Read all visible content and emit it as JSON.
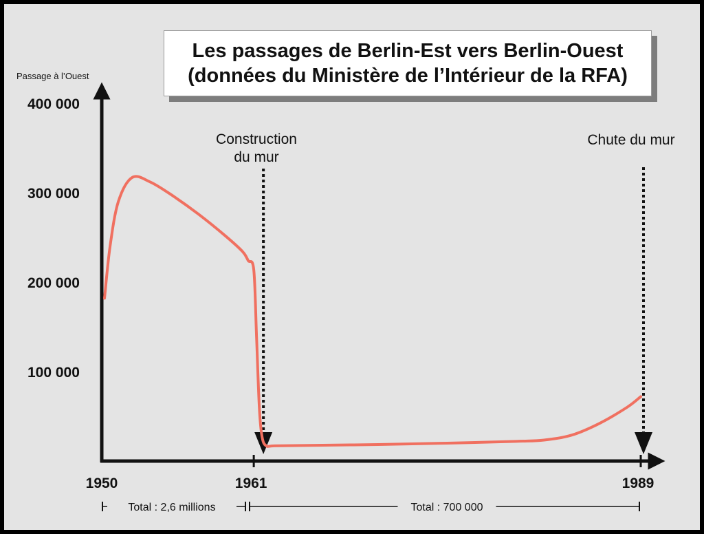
{
  "chart_data": {
    "type": "line",
    "title": [
      "Les passages de Berlin-Est vers Berlin-Ouest",
      "(données du Ministère de l’Intérieur de la RFA)"
    ],
    "ylabel": "Passage à l’Ouest",
    "ylim": [
      0,
      400000
    ],
    "yticks": [
      {
        "value": 100000,
        "label": "100 000"
      },
      {
        "value": 200000,
        "label": "200 000"
      },
      {
        "value": 300000,
        "label": "300 000"
      },
      {
        "value": 400000,
        "label": "400 000"
      }
    ],
    "xlim": [
      1950,
      1989
    ],
    "xticks": [
      {
        "value": 1950,
        "label": "1950"
      },
      {
        "value": 1961,
        "label": "1961"
      },
      {
        "value": 1989,
        "label": "1989"
      }
    ],
    "grid": false,
    "line_color": "#f07060",
    "series": [
      {
        "x": [
          1950.2,
          1950.6,
          1951.2,
          1952.2,
          1953.5,
          1955,
          1957,
          1959,
          1960.2,
          1960.6,
          1961.0,
          1961.2,
          1961.4,
          1961.6,
          1961.9,
          1962.5,
          1965,
          1970,
          1975,
          1980,
          1982,
          1984,
          1986,
          1988,
          1989
        ],
        "y": [
          182000,
          240000,
          290000,
          317000,
          312000,
          298000,
          276000,
          251000,
          234000,
          224000,
          214000,
          140000,
          60000,
          27000,
          17000,
          17000,
          17500,
          18500,
          20000,
          22000,
          23500,
          29000,
          42000,
          60000,
          72000
        ]
      }
    ],
    "events": [
      {
        "year": 1961,
        "label_lines": [
          "Construction",
          "du mur"
        ]
      },
      {
        "year": 1989,
        "label_lines": [
          "Chute du mur"
        ]
      }
    ],
    "totals": [
      {
        "from": 1950,
        "to": 1961,
        "label": "Total : 2,6 millions"
      },
      {
        "from": 1961,
        "to": 1989,
        "label": "Total : 700 000"
      }
    ]
  }
}
